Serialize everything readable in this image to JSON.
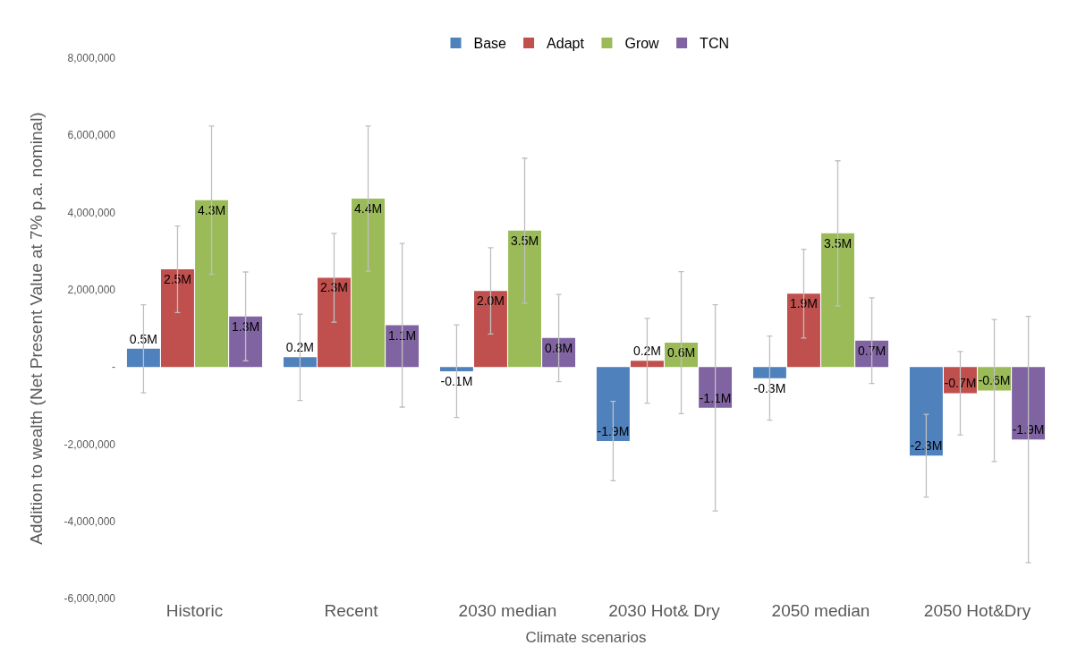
{
  "chart_data": {
    "type": "bar",
    "xlabel": "Climate scenarios",
    "ylabel": "Addition to wealth (Net Present Value at 7% p.a. nominal)",
    "categories": [
      "Historic",
      "Recent",
      "2030 median",
      "2030 Hot& Dry",
      "2050 median",
      "2050 Hot&Dry"
    ],
    "series": [
      {
        "name": "Base",
        "color": "#4f81bd",
        "values": [
          470000,
          250000,
          -110000,
          -1920000,
          -290000,
          -2300000
        ],
        "errors": [
          1140000,
          1120000,
          1200000,
          1030000,
          1090000,
          1070000
        ],
        "value_labels": [
          "0.5M",
          "0.2M",
          "-0.1M",
          "-1.9M",
          "-0.3M",
          "-2.3M"
        ]
      },
      {
        "name": "Adapt",
        "color": "#c0504d",
        "values": [
          2530000,
          2310000,
          1970000,
          160000,
          1900000,
          -680000
        ],
        "errors": [
          1120000,
          1150000,
          1120000,
          1100000,
          1150000,
          1080000
        ],
        "value_labels": [
          "2.5M",
          "2.3M",
          "2.0M",
          "0.2M",
          "1.9M",
          "-0.7M"
        ]
      },
      {
        "name": "Grow",
        "color": "#9bbb59",
        "values": [
          4320000,
          4360000,
          3530000,
          630000,
          3460000,
          -610000
        ],
        "errors": [
          1920000,
          1880000,
          1880000,
          1840000,
          1880000,
          1840000
        ],
        "value_labels": [
          "4.3M",
          "4.4M",
          "3.5M",
          "0.6M",
          "3.5M",
          "-0.6M"
        ]
      },
      {
        "name": "TCN",
        "color": "#8064a2",
        "values": [
          1310000,
          1080000,
          750000,
          -1060000,
          680000,
          -1880000
        ],
        "errors": [
          1150000,
          2120000,
          1130000,
          2670000,
          1110000,
          3190000
        ],
        "value_labels": [
          "1.3M",
          "1.1M",
          "0.8M",
          "-1.1M",
          "0.7M",
          "-1.9M"
        ]
      }
    ],
    "ylim": [
      -6000000,
      8000000
    ],
    "yticks": [
      {
        "value": -6000000,
        "label": "-6,000,000"
      },
      {
        "value": -4000000,
        "label": "-4,000,000"
      },
      {
        "value": -2000000,
        "label": "-2,000,000"
      },
      {
        "value": 0,
        "label": "-"
      },
      {
        "value": 2000000,
        "label": "2,000,000"
      },
      {
        "value": 4000000,
        "label": "4,000,000"
      },
      {
        "value": 6000000,
        "label": "6,000,000"
      },
      {
        "value": 8000000,
        "label": "8,000,000"
      }
    ],
    "legend": "top",
    "grid": false
  }
}
